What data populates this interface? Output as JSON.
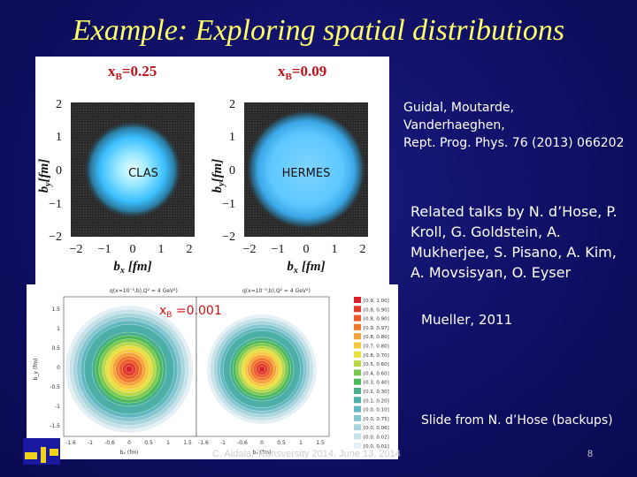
{
  "slide": {
    "title": "Example: Exploring spatial distributions",
    "reference": [
      "Guidal, Moutarde,",
      "Vanderhaeghen,",
      "Rept. Prog. Phys. 76 (2013) 066202"
    ],
    "related_talks": [
      "Related talks by N. d’Hose, P.",
      "Kroll, G. Goldstein, A.",
      "Mukherjee, S. Pisano, A. Kim,",
      "A. Movsisyan, O. Eyser"
    ],
    "mueller_ref": "Mueller, 2011",
    "slide_from": "Slide from N. d’Hose (backups)",
    "footer": "C. Aidala, Transversity 2014, June 13, 2014",
    "page_number": "8"
  },
  "top_figure": {
    "left_label": "x",
    "left_sub": "B",
    "left_value": "=0.25",
    "right_label": "x",
    "right_sub": "B",
    "right_value": "=0.09",
    "left_experiment": "CLAS",
    "right_experiment": "HERMES",
    "axis_ticks_y": [
      "2",
      "1",
      "0",
      "−1",
      "−2"
    ],
    "axis_ticks_x": [
      "−2",
      "−1",
      "0",
      "1",
      "2"
    ],
    "xlabel": "b",
    "xlabel_sub": "x",
    "xlabel_unit": "[fm]",
    "ylabel": "b",
    "ylabel_sub": "y",
    "ylabel_unit": "[fm]"
  },
  "bottom_figure": {
    "left_header": "q(x=10⁻³,b),Q² = 4 GeV²)",
    "right_header": "q(x=10⁻³,b),Q² = 4 GeV²)",
    "xb_label": "x",
    "xb_sub": "B",
    "xb_value": " =0.001",
    "yticks": [
      "1.5",
      "1",
      "0.5",
      "0",
      "-0.5",
      "-1",
      "-1.5"
    ],
    "xticks": [
      "-1.6",
      "-1",
      "-0.6",
      "0",
      "0.5",
      "1",
      "1.5"
    ],
    "xlabel": "bₓ (fm)",
    "ylabel": "b_y (fm)",
    "legend": [
      "[0.9, 1.00]",
      "[0.8, 0.90]",
      "[0.8, 0.90]",
      "[0.9, 0.97]",
      "[0.8, 0.80]",
      "[0.7, 0.80]",
      "[0.8, 0.70]",
      "[0.5, 0.60]",
      "[0.4, 0.60]",
      "[0.3, 0.40]",
      "[0.2, 0.30]",
      "[0.1, 0.20]",
      "[0.0, 0.10]",
      "[0.0, 0.75]",
      "[0.0, 0.06]",
      "[0.0, 0.02]",
      "[0.0, 0.01]"
    ],
    "legend_colors": [
      "#d8202a",
      "#e23a2a",
      "#ec5a2a",
      "#f07a2c",
      "#f5a23a",
      "#f7c83c",
      "#e8e040",
      "#b8d848",
      "#7cc850",
      "#4cb858",
      "#46b088",
      "#4cb0a8",
      "#62b8c0",
      "#86c6d0",
      "#a8d4dc",
      "#c8e2ea",
      "#e4f0f4"
    ]
  }
}
